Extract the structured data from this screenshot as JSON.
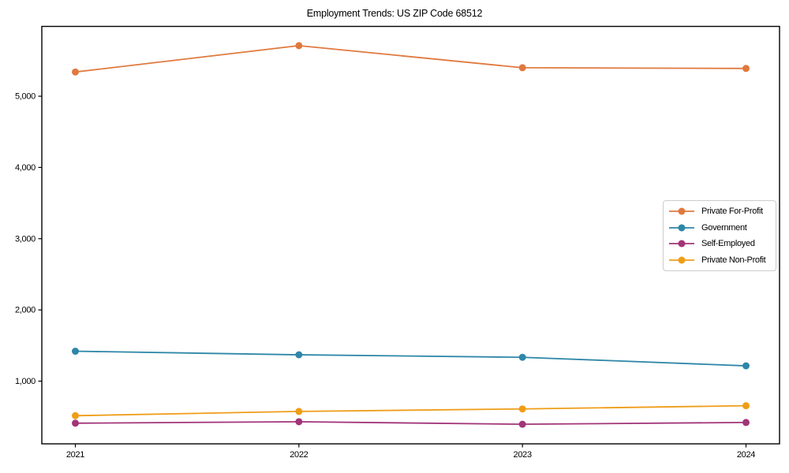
{
  "chart_data": {
    "type": "line",
    "title": "Employment Trends: US ZIP Code 68512",
    "xlabel": "",
    "ylabel": "",
    "x": [
      2021,
      2022,
      2023,
      2024
    ],
    "xtick_labels": [
      "2021",
      "2022",
      "2023",
      "2024"
    ],
    "yticks": [
      1000,
      2000,
      3000,
      4000,
      5000
    ],
    "ytick_labels": [
      "1,000",
      "2,000",
      "3,000",
      "4,000",
      "5,000"
    ],
    "ylim": [
      120,
      5980
    ],
    "grid": false,
    "legend_position": "center right",
    "series": [
      {
        "name": "Private For-Profit",
        "color": "#e0793e",
        "values": [
          5340,
          5710,
          5400,
          5390
        ]
      },
      {
        "name": "Government",
        "color": "#2e87a8",
        "values": [
          1420,
          1370,
          1335,
          1215
        ]
      },
      {
        "name": "Self-Employed",
        "color": "#a23478",
        "values": [
          410,
          430,
          395,
          420
        ]
      },
      {
        "name": "Private Non-Profit",
        "color": "#ef9d18",
        "values": [
          515,
          575,
          610,
          655
        ]
      }
    ],
    "axis_color": "#000000",
    "background_color": "#ffffff"
  }
}
